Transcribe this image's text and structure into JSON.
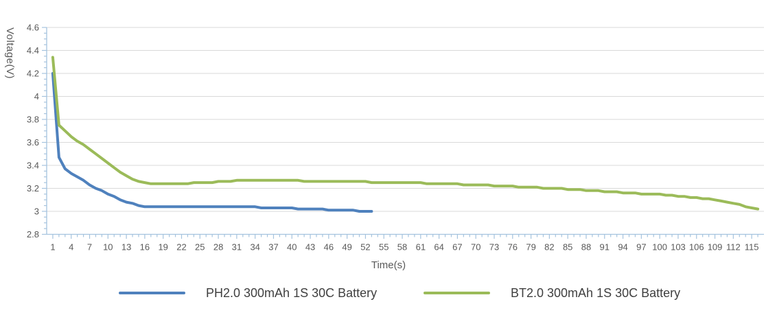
{
  "chart_data": {
    "type": "line",
    "title": "",
    "xlabel": "Time(s)",
    "ylabel": "Voltage(V)",
    "xlim": [
      0,
      117
    ],
    "ylim": [
      2.8,
      4.6
    ],
    "grid": "horizontal-only",
    "legend_position": "bottom",
    "x_ticks": [
      1,
      4,
      7,
      10,
      13,
      16,
      19,
      22,
      25,
      28,
      31,
      34,
      37,
      40,
      43,
      46,
      49,
      52,
      55,
      58,
      61,
      64,
      67,
      70,
      73,
      76,
      79,
      82,
      85,
      88,
      91,
      94,
      97,
      100,
      103,
      106,
      109,
      112,
      115
    ],
    "x_minor_tick_step": 1,
    "y_tick_labels": [
      "2.8",
      "3",
      "3.2",
      "3.4",
      "3.6",
      "3.8",
      "4",
      "4.2",
      "4.4",
      "4.6"
    ],
    "y_minor_tick_step": 0.05,
    "series": [
      {
        "name": "PH2.0 300mAh 1S 30C Battery",
        "color": "#4f81bd",
        "points": [
          [
            1,
            4.2
          ],
          [
            2,
            3.47
          ],
          [
            3,
            3.37
          ],
          [
            4,
            3.33
          ],
          [
            5,
            3.3
          ],
          [
            6,
            3.27
          ],
          [
            7,
            3.23
          ],
          [
            8,
            3.2
          ],
          [
            9,
            3.18
          ],
          [
            10,
            3.15
          ],
          [
            11,
            3.13
          ],
          [
            12,
            3.1
          ],
          [
            13,
            3.08
          ],
          [
            14,
            3.07
          ],
          [
            15,
            3.05
          ],
          [
            16,
            3.04
          ],
          [
            17,
            3.04
          ],
          [
            18,
            3.04
          ],
          [
            19,
            3.04
          ],
          [
            20,
            3.04
          ],
          [
            21,
            3.04
          ],
          [
            22,
            3.04
          ],
          [
            23,
            3.04
          ],
          [
            24,
            3.04
          ],
          [
            25,
            3.04
          ],
          [
            26,
            3.04
          ],
          [
            27,
            3.04
          ],
          [
            28,
            3.04
          ],
          [
            29,
            3.04
          ],
          [
            30,
            3.04
          ],
          [
            31,
            3.04
          ],
          [
            32,
            3.04
          ],
          [
            33,
            3.04
          ],
          [
            34,
            3.04
          ],
          [
            35,
            3.03
          ],
          [
            36,
            3.03
          ],
          [
            37,
            3.03
          ],
          [
            38,
            3.03
          ],
          [
            39,
            3.03
          ],
          [
            40,
            3.03
          ],
          [
            41,
            3.02
          ],
          [
            42,
            3.02
          ],
          [
            43,
            3.02
          ],
          [
            44,
            3.02
          ],
          [
            45,
            3.02
          ],
          [
            46,
            3.01
          ],
          [
            47,
            3.01
          ],
          [
            48,
            3.01
          ],
          [
            49,
            3.01
          ],
          [
            50,
            3.01
          ],
          [
            51,
            3.0
          ],
          [
            52,
            3.0
          ],
          [
            53,
            3.0
          ]
        ]
      },
      {
        "name": "BT2.0 300mAh 1S 30C Battery",
        "color": "#9bbb59",
        "points": [
          [
            1,
            4.34
          ],
          [
            2,
            3.75
          ],
          [
            3,
            3.7
          ],
          [
            4,
            3.65
          ],
          [
            5,
            3.61
          ],
          [
            6,
            3.58
          ],
          [
            7,
            3.54
          ],
          [
            8,
            3.5
          ],
          [
            9,
            3.46
          ],
          [
            10,
            3.42
          ],
          [
            11,
            3.38
          ],
          [
            12,
            3.34
          ],
          [
            13,
            3.31
          ],
          [
            14,
            3.28
          ],
          [
            15,
            3.26
          ],
          [
            16,
            3.25
          ],
          [
            17,
            3.24
          ],
          [
            18,
            3.24
          ],
          [
            19,
            3.24
          ],
          [
            20,
            3.24
          ],
          [
            21,
            3.24
          ],
          [
            22,
            3.24
          ],
          [
            23,
            3.24
          ],
          [
            24,
            3.25
          ],
          [
            25,
            3.25
          ],
          [
            26,
            3.25
          ],
          [
            27,
            3.25
          ],
          [
            28,
            3.26
          ],
          [
            29,
            3.26
          ],
          [
            30,
            3.26
          ],
          [
            31,
            3.27
          ],
          [
            32,
            3.27
          ],
          [
            33,
            3.27
          ],
          [
            34,
            3.27
          ],
          [
            35,
            3.27
          ],
          [
            36,
            3.27
          ],
          [
            37,
            3.27
          ],
          [
            38,
            3.27
          ],
          [
            39,
            3.27
          ],
          [
            40,
            3.27
          ],
          [
            41,
            3.27
          ],
          [
            42,
            3.26
          ],
          [
            43,
            3.26
          ],
          [
            44,
            3.26
          ],
          [
            45,
            3.26
          ],
          [
            46,
            3.26
          ],
          [
            47,
            3.26
          ],
          [
            48,
            3.26
          ],
          [
            49,
            3.26
          ],
          [
            50,
            3.26
          ],
          [
            51,
            3.26
          ],
          [
            52,
            3.26
          ],
          [
            53,
            3.25
          ],
          [
            54,
            3.25
          ],
          [
            55,
            3.25
          ],
          [
            56,
            3.25
          ],
          [
            57,
            3.25
          ],
          [
            58,
            3.25
          ],
          [
            59,
            3.25
          ],
          [
            60,
            3.25
          ],
          [
            61,
            3.25
          ],
          [
            62,
            3.24
          ],
          [
            63,
            3.24
          ],
          [
            64,
            3.24
          ],
          [
            65,
            3.24
          ],
          [
            66,
            3.24
          ],
          [
            67,
            3.24
          ],
          [
            68,
            3.23
          ],
          [
            69,
            3.23
          ],
          [
            70,
            3.23
          ],
          [
            71,
            3.23
          ],
          [
            72,
            3.23
          ],
          [
            73,
            3.22
          ],
          [
            74,
            3.22
          ],
          [
            75,
            3.22
          ],
          [
            76,
            3.22
          ],
          [
            77,
            3.21
          ],
          [
            78,
            3.21
          ],
          [
            79,
            3.21
          ],
          [
            80,
            3.21
          ],
          [
            81,
            3.2
          ],
          [
            82,
            3.2
          ],
          [
            83,
            3.2
          ],
          [
            84,
            3.2
          ],
          [
            85,
            3.19
          ],
          [
            86,
            3.19
          ],
          [
            87,
            3.19
          ],
          [
            88,
            3.18
          ],
          [
            89,
            3.18
          ],
          [
            90,
            3.18
          ],
          [
            91,
            3.17
          ],
          [
            92,
            3.17
          ],
          [
            93,
            3.17
          ],
          [
            94,
            3.16
          ],
          [
            95,
            3.16
          ],
          [
            96,
            3.16
          ],
          [
            97,
            3.15
          ],
          [
            98,
            3.15
          ],
          [
            99,
            3.15
          ],
          [
            100,
            3.15
          ],
          [
            101,
            3.14
          ],
          [
            102,
            3.14
          ],
          [
            103,
            3.13
          ],
          [
            104,
            3.13
          ],
          [
            105,
            3.12
          ],
          [
            106,
            3.12
          ],
          [
            107,
            3.11
          ],
          [
            108,
            3.11
          ],
          [
            109,
            3.1
          ],
          [
            110,
            3.09
          ],
          [
            111,
            3.08
          ],
          [
            112,
            3.07
          ],
          [
            113,
            3.06
          ],
          [
            114,
            3.04
          ],
          [
            115,
            3.03
          ],
          [
            116,
            3.02
          ]
        ]
      }
    ]
  },
  "style": {
    "axis_color": "#a5c3de",
    "grid_color": "#d9d9d9",
    "tick_label_color": "#595959",
    "axis_title_color": "#595959",
    "legend_text_color": "#3f3f3f",
    "background_color": "#ffffff"
  }
}
